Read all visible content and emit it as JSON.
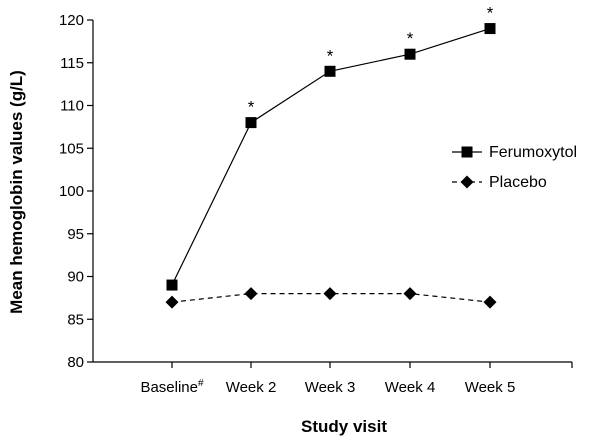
{
  "chart_data": {
    "type": "line",
    "title": "",
    "xlabel": "Study visit",
    "ylabel": "Mean hemoglobin values (g/L)",
    "ylim": [
      80,
      120
    ],
    "yticks": [
      80,
      85,
      90,
      95,
      100,
      105,
      110,
      115,
      120
    ],
    "categories": [
      "Baseline",
      "Week 2",
      "Week 3",
      "Week 4",
      "Week 5"
    ],
    "baseline_superscript": "#",
    "series": [
      {
        "name": "Ferumoxytol",
        "values": [
          89,
          108,
          114,
          116,
          119
        ],
        "line_style": "solid",
        "marker": "square",
        "significance": [
          "",
          "*",
          "*",
          "*",
          "*"
        ]
      },
      {
        "name": "Placebo",
        "values": [
          87,
          88,
          88,
          88,
          87
        ],
        "line_style": "dashed",
        "marker": "diamond"
      }
    ],
    "legend_position": "right",
    "grid": false,
    "color": "#000000"
  }
}
